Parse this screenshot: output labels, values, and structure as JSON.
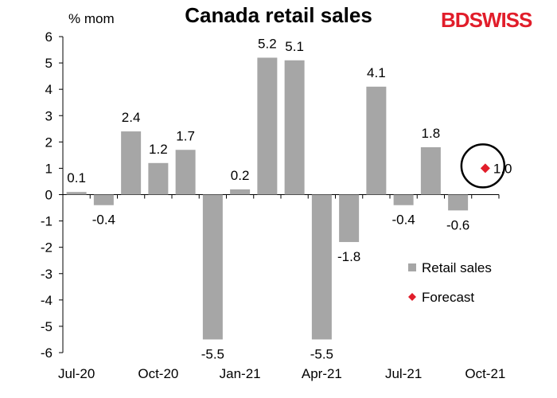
{
  "title": "Canada retail sales",
  "logo": {
    "part1": "BD",
    "part2": "SWISS"
  },
  "colors": {
    "bar": "#a6a6a6",
    "forecast": "#e11d2a",
    "text": "#000000"
  },
  "chart_data": {
    "type": "bar",
    "title": "Canada retail sales",
    "ylabel": "% mom",
    "xlabel": "",
    "ylim": [
      -6,
      6
    ],
    "yticks": [
      6,
      5,
      4,
      3,
      2,
      1,
      0,
      -1,
      -2,
      -3,
      -4,
      -5,
      -6
    ],
    "categories": [
      "Jul-20",
      "Aug-20",
      "Sep-20",
      "Oct-20",
      "Nov-20",
      "Dec-20",
      "Jan-21",
      "Feb-21",
      "Mar-21",
      "Apr-21",
      "May-21",
      "Jun-21",
      "Jul-21",
      "Aug-21",
      "Sep-21",
      "Oct-21"
    ],
    "x_tick_labels": [
      {
        "index": 0,
        "label": "Jul-20"
      },
      {
        "index": 3,
        "label": "Oct-20"
      },
      {
        "index": 6,
        "label": "Jan-21"
      },
      {
        "index": 9,
        "label": "Apr-21"
      },
      {
        "index": 12,
        "label": "Jul-21"
      },
      {
        "index": 15,
        "label": "Oct-21"
      }
    ],
    "series": [
      {
        "name": "Retail sales",
        "type": "bar",
        "values": [
          0.1,
          -0.4,
          2.4,
          1.2,
          1.7,
          -5.5,
          0.2,
          5.2,
          5.1,
          -5.5,
          -1.8,
          4.1,
          -0.4,
          1.8,
          -0.6,
          null
        ],
        "labels": [
          "0.1",
          "-0.4",
          "2.4",
          "1.2",
          "1.7",
          "-5.5",
          "0.2",
          "5.2",
          "5.1",
          "-5.5",
          "-1.8",
          "4.1",
          "-0.4",
          "1.8",
          "-0.6",
          ""
        ]
      },
      {
        "name": "Forecast",
        "type": "scatter",
        "marker": "diamond",
        "points": [
          {
            "index": 15,
            "value": 1.0,
            "label": "1.0"
          }
        ]
      }
    ],
    "annotation": {
      "type": "circle",
      "around": "Forecast",
      "index": 15,
      "value": 1.0
    },
    "legend": {
      "position": "bottom-right",
      "items": [
        "Retail sales",
        "Forecast"
      ]
    },
    "grid": false
  }
}
